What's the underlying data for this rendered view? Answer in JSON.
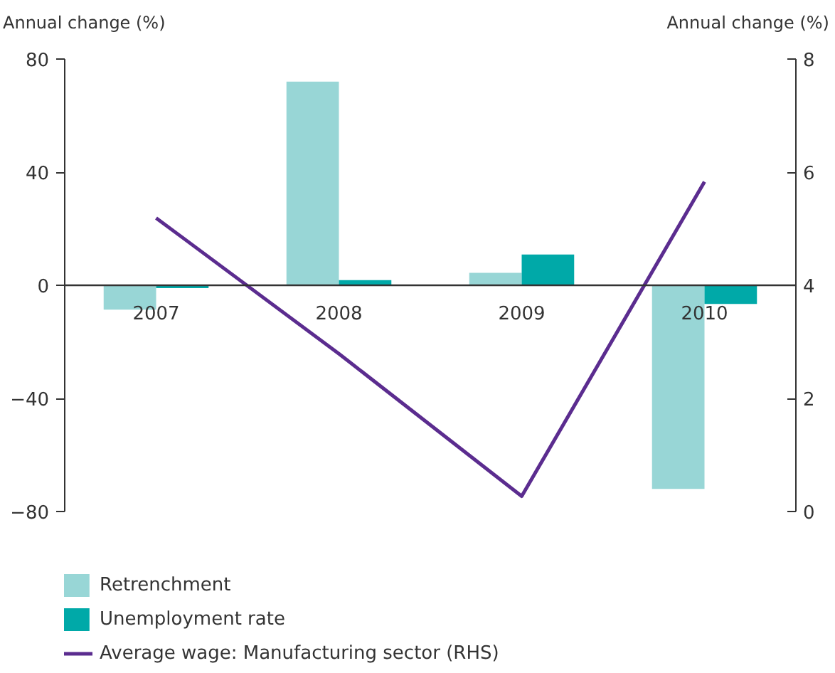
{
  "chart_data": {
    "type": "bar",
    "ylabel": "Annual change (%)",
    "y2label": "Annual change (%)",
    "categories": [
      "2007",
      "2008",
      "2009",
      "2010"
    ],
    "series": [
      {
        "name": "Retrenchment",
        "color": "#98d6d6",
        "values": [
          -8.6,
          72,
          4.4,
          -72
        ]
      },
      {
        "name": "Unemployment rate",
        "color": "#00a9a8",
        "values": [
          -1,
          1.8,
          10.9,
          -6.6
        ]
      },
      {
        "name": "Average wage: Manufacturing sector (RHS)",
        "type": "line",
        "axis": "y2",
        "color": "#5b2c8f",
        "values": [
          5.19,
          2.79,
          0.27,
          5.83
        ]
      }
    ],
    "ylim": [
      -80,
      80
    ],
    "yticks": [
      -80,
      -40,
      0,
      40,
      80
    ],
    "y2lim": [
      0,
      8
    ],
    "y2ticks": [
      0,
      2,
      4,
      6,
      8
    ],
    "grid": false,
    "legend": "bottom",
    "line_style": "solid"
  }
}
